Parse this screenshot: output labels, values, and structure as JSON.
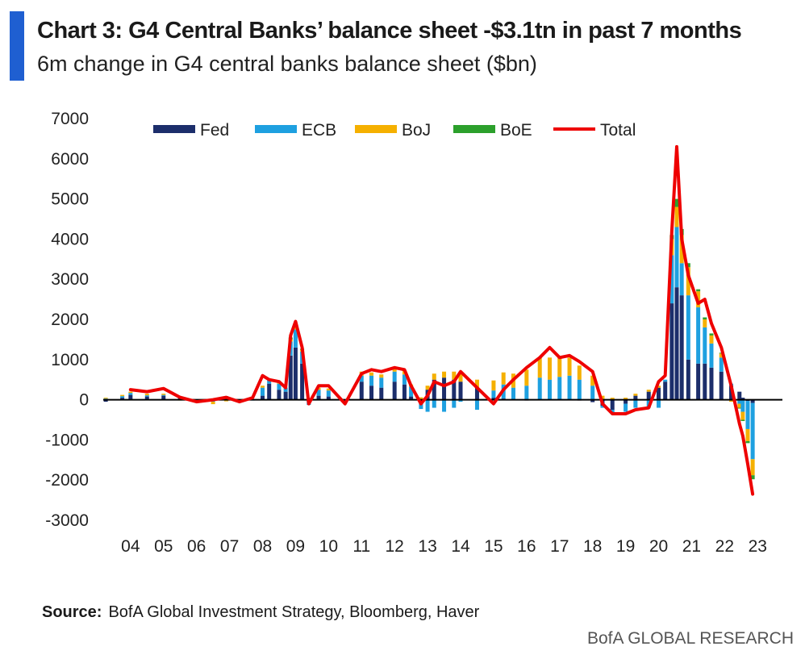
{
  "header": {
    "title": "Chart 3: G4 Central Banks’ balance sheet -$3.1tn in past 7 months",
    "subtitle": "6m change in G4 central banks balance sheet ($bn)"
  },
  "footer": {
    "source_label": "Source:",
    "source_text": "BofA Global Investment Strategy, Bloomberg, Haver",
    "brand": "BofA GLOBAL RESEARCH"
  },
  "chart_data": {
    "type": "bar",
    "stacked": true,
    "overlay_line": "Total",
    "x_tick_labels": [
      "04",
      "05",
      "06",
      "07",
      "08",
      "09",
      "10",
      "11",
      "12",
      "13",
      "14",
      "15",
      "16",
      "17",
      "18",
      "19",
      "20",
      "21",
      "22",
      "23"
    ],
    "y_tick_labels": [
      "7000",
      "6000",
      "5000",
      "4000",
      "3000",
      "2000",
      "1000",
      "0",
      "-1000",
      "-2000",
      "-3000"
    ],
    "xlim": [
      2003.1,
      2023.8
    ],
    "ylim": [
      -3000,
      7000
    ],
    "grid": false,
    "legend_position": "top",
    "colors": {
      "Fed": "#1c2e6b",
      "ECB": "#1ea0e0",
      "BoJ": "#f5b000",
      "BoE": "#2ca02c",
      "Total": "#ee0000"
    },
    "x": [
      2003.25,
      2003.75,
      2004.0,
      2004.5,
      2005.0,
      2005.5,
      2006.0,
      2006.5,
      2006.9,
      2007.3,
      2007.7,
      2008.0,
      2008.2,
      2008.5,
      2008.7,
      2008.85,
      2009.0,
      2009.2,
      2009.4,
      2009.7,
      2010.0,
      2010.5,
      2011.0,
      2011.3,
      2011.6,
      2012.0,
      2012.3,
      2012.5,
      2012.8,
      2013.0,
      2013.2,
      2013.5,
      2013.8,
      2014.0,
      2014.5,
      2015.0,
      2015.3,
      2015.6,
      2016.0,
      2016.4,
      2016.7,
      2017.0,
      2017.3,
      2017.6,
      2018.0,
      2018.3,
      2018.6,
      2019.0,
      2019.3,
      2019.7,
      2020.0,
      2020.2,
      2020.4,
      2020.55,
      2020.7,
      2020.9,
      2021.2,
      2021.4,
      2021.6,
      2021.9,
      2022.2,
      2022.45,
      2022.55,
      2022.7,
      2022.85
    ],
    "series": [
      {
        "name": "Fed",
        "values": [
          -50,
          50,
          120,
          80,
          100,
          60,
          0,
          -20,
          30,
          -10,
          0,
          100,
          400,
          250,
          200,
          1100,
          1300,
          900,
          -50,
          100,
          80,
          -20,
          450,
          350,
          300,
          450,
          380,
          80,
          -80,
          250,
          500,
          550,
          500,
          450,
          300,
          50,
          30,
          0,
          -20,
          -10,
          0,
          20,
          -10,
          -20,
          -60,
          -150,
          -250,
          -100,
          100,
          200,
          300,
          450,
          2400,
          2800,
          2600,
          1000,
          900,
          900,
          800,
          700,
          350,
          200,
          50,
          -30,
          -80
        ]
      },
      {
        "name": "ECB",
        "values": [
          30,
          40,
          50,
          30,
          20,
          0,
          -10,
          -30,
          60,
          0,
          -20,
          200,
          100,
          150,
          100,
          350,
          450,
          300,
          -80,
          150,
          150,
          -50,
          150,
          250,
          250,
          250,
          250,
          250,
          -150,
          -300,
          -200,
          -300,
          -200,
          -50,
          -250,
          180,
          350,
          300,
          350,
          550,
          500,
          550,
          600,
          500,
          350,
          -50,
          -80,
          -200,
          -200,
          -200,
          -200,
          50,
          1200,
          1500,
          800,
          1600,
          1400,
          900,
          600,
          350,
          50,
          -100,
          -300,
          -700,
          -1400
        ]
      },
      {
        "name": "BoJ",
        "values": [
          20,
          30,
          30,
          40,
          30,
          -20,
          -30,
          -60,
          -40,
          -60,
          10,
          50,
          0,
          20,
          0,
          50,
          80,
          40,
          20,
          50,
          50,
          0,
          100,
          80,
          80,
          100,
          100,
          50,
          60,
          100,
          150,
          150,
          200,
          250,
          200,
          250,
          300,
          350,
          400,
          500,
          550,
          500,
          450,
          350,
          250,
          100,
          50,
          50,
          50,
          50,
          50,
          0,
          400,
          500,
          700,
          700,
          400,
          200,
          200,
          100,
          -50,
          -100,
          -200,
          -300,
          -400
        ]
      },
      {
        "name": "BoE",
        "values": [
          0,
          0,
          0,
          0,
          0,
          0,
          0,
          0,
          0,
          0,
          0,
          0,
          0,
          0,
          0,
          50,
          50,
          30,
          0,
          0,
          0,
          0,
          0,
          0,
          0,
          0,
          0,
          0,
          0,
          0,
          0,
          0,
          0,
          0,
          0,
          0,
          0,
          0,
          0,
          0,
          0,
          0,
          0,
          0,
          0,
          0,
          0,
          0,
          0,
          0,
          0,
          0,
          100,
          200,
          150,
          100,
          50,
          50,
          50,
          20,
          0,
          -20,
          -30,
          -50,
          -100
        ]
      },
      {
        "name": "Total",
        "values": [
          null,
          null,
          250,
          200,
          280,
          60,
          -50,
          0,
          60,
          -50,
          50,
          600,
          500,
          450,
          300,
          1600,
          1950,
          1300,
          -100,
          350,
          350,
          -100,
          650,
          750,
          700,
          800,
          750,
          350,
          -100,
          100,
          450,
          350,
          450,
          700,
          300,
          -100,
          250,
          500,
          800,
          1050,
          1300,
          1050,
          1100,
          950,
          700,
          -100,
          -350,
          -350,
          -250,
          -200,
          450,
          600,
          4200,
          6300,
          4000,
          3100,
          2400,
          2500,
          1900,
          1300,
          350,
          -600,
          -900,
          -1600,
          -2350
        ]
      }
    ]
  }
}
